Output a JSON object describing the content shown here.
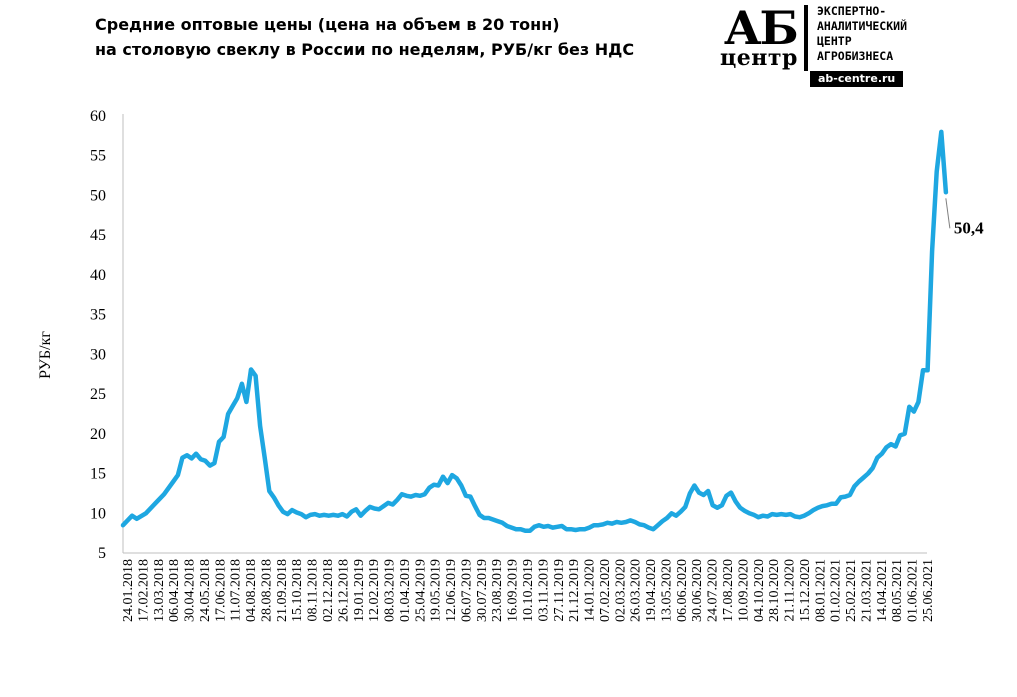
{
  "chart_data": {
    "type": "line",
    "title_line1": "Средние оптовые цены (цена на объем в 20 тонн)",
    "title_line2": "на столовую свеклу в России по неделям, РУБ/кг без НДС",
    "ylabel": "РУБ/кг",
    "ylim": [
      5,
      60
    ],
    "yticks": [
      "5",
      "10",
      "15",
      "20",
      "25",
      "30",
      "35",
      "40",
      "45",
      "50",
      "55",
      "60"
    ],
    "grid": false,
    "line_color": "#1ea7e1",
    "x_ticks": [
      "24.01.2018",
      "17.02.2018",
      "13.03.2018",
      "06.04.2018",
      "30.04.2018",
      "24.05.2018",
      "17.06.2018",
      "11.07.2018",
      "04.08.2018",
      "28.08.2018",
      "21.09.2018",
      "15.10.2018",
      "08.11.2018",
      "02.12.2018",
      "26.12.2018",
      "19.01.2019",
      "12.02.2019",
      "08.03.2019",
      "01.04.2019",
      "25.04.2019",
      "19.05.2019",
      "12.06.2019",
      "06.07.2019",
      "30.07.2019",
      "23.08.2019",
      "16.09.2019",
      "10.10.2019",
      "03.11.2019",
      "27.11.2019",
      "21.12.2019",
      "14.01.2020",
      "07.02.2020",
      "02.03.2020",
      "26.03.2020",
      "19.04.2020",
      "13.05.2020",
      "06.06.2020",
      "30.06.2020",
      "24.07.2020",
      "17.08.2020",
      "10.09.2020",
      "04.10.2020",
      "28.10.2020",
      "21.11.2020",
      "15.12.2020",
      "08.01.2021",
      "01.02.2021",
      "25.02.2021",
      "21.03.2021",
      "14.04.2021",
      "08.05.2021",
      "01.06.2021",
      "25.06.2021"
    ],
    "weeks": 178,
    "points": [
      [
        0,
        8.5
      ],
      [
        2,
        9.7
      ],
      [
        3,
        9.3
      ],
      [
        5,
        10.0
      ],
      [
        7,
        11.2
      ],
      [
        9,
        12.4
      ],
      [
        11,
        14.0
      ],
      [
        12,
        14.8
      ],
      [
        13,
        17.0
      ],
      [
        14,
        17.3
      ],
      [
        15,
        16.9
      ],
      [
        16,
        17.5
      ],
      [
        17,
        16.8
      ],
      [
        18,
        16.6
      ],
      [
        19,
        16.0
      ],
      [
        20,
        16.3
      ],
      [
        21,
        19.0
      ],
      [
        22,
        19.6
      ],
      [
        23,
        22.5
      ],
      [
        24,
        23.5
      ],
      [
        25,
        24.5
      ],
      [
        26,
        26.3
      ],
      [
        27,
        24.0
      ],
      [
        28,
        28.1
      ],
      [
        29,
        27.3
      ],
      [
        30,
        21.0
      ],
      [
        31,
        17.0
      ],
      [
        32,
        12.8
      ],
      [
        33,
        12.0
      ],
      [
        34,
        11.0
      ],
      [
        35,
        10.2
      ],
      [
        36,
        9.9
      ],
      [
        37,
        10.4
      ],
      [
        38,
        10.1
      ],
      [
        39,
        9.9
      ],
      [
        40,
        9.5
      ],
      [
        41,
        9.8
      ],
      [
        42,
        9.9
      ],
      [
        43,
        9.7
      ],
      [
        44,
        9.8
      ],
      [
        45,
        9.7
      ],
      [
        46,
        9.8
      ],
      [
        47,
        9.7
      ],
      [
        48,
        9.9
      ],
      [
        49,
        9.6
      ],
      [
        50,
        10.2
      ],
      [
        51,
        10.5
      ],
      [
        52,
        9.7
      ],
      [
        53,
        10.3
      ],
      [
        54,
        10.8
      ],
      [
        55,
        10.6
      ],
      [
        56,
        10.5
      ],
      [
        57,
        10.9
      ],
      [
        58,
        11.3
      ],
      [
        59,
        11.1
      ],
      [
        60,
        11.7
      ],
      [
        61,
        12.4
      ],
      [
        62,
        12.2
      ],
      [
        63,
        12.1
      ],
      [
        64,
        12.3
      ],
      [
        65,
        12.2
      ],
      [
        66,
        12.4
      ],
      [
        67,
        13.2
      ],
      [
        68,
        13.6
      ],
      [
        69,
        13.5
      ],
      [
        70,
        14.6
      ],
      [
        71,
        13.8
      ],
      [
        72,
        14.8
      ],
      [
        73,
        14.4
      ],
      [
        74,
        13.5
      ],
      [
        75,
        12.2
      ],
      [
        76,
        12.1
      ],
      [
        77,
        10.9
      ],
      [
        78,
        9.8
      ],
      [
        79,
        9.4
      ],
      [
        80,
        9.4
      ],
      [
        81,
        9.2
      ],
      [
        82,
        9.0
      ],
      [
        83,
        8.8
      ],
      [
        84,
        8.4
      ],
      [
        85,
        8.2
      ],
      [
        86,
        8.0
      ],
      [
        87,
        8.0
      ],
      [
        88,
        7.8
      ],
      [
        89,
        7.8
      ],
      [
        90,
        8.3
      ],
      [
        91,
        8.5
      ],
      [
        92,
        8.3
      ],
      [
        93,
        8.4
      ],
      [
        94,
        8.2
      ],
      [
        95,
        8.3
      ],
      [
        96,
        8.4
      ],
      [
        97,
        8.0
      ],
      [
        98,
        8.0
      ],
      [
        99,
        7.9
      ],
      [
        100,
        8.0
      ],
      [
        101,
        8.0
      ],
      [
        102,
        8.2
      ],
      [
        103,
        8.5
      ],
      [
        104,
        8.5
      ],
      [
        105,
        8.6
      ],
      [
        106,
        8.8
      ],
      [
        107,
        8.7
      ],
      [
        108,
        8.9
      ],
      [
        109,
        8.8
      ],
      [
        110,
        8.9
      ],
      [
        111,
        9.1
      ],
      [
        112,
        8.9
      ],
      [
        113,
        8.6
      ],
      [
        114,
        8.5
      ],
      [
        115,
        8.2
      ],
      [
        116,
        8.0
      ],
      [
        117,
        8.5
      ],
      [
        118,
        9.0
      ],
      [
        119,
        9.4
      ],
      [
        120,
        10.0
      ],
      [
        121,
        9.7
      ],
      [
        122,
        10.2
      ],
      [
        123,
        10.8
      ],
      [
        124,
        12.5
      ],
      [
        125,
        13.5
      ],
      [
        126,
        12.6
      ],
      [
        127,
        12.3
      ],
      [
        128,
        12.8
      ],
      [
        129,
        11.0
      ],
      [
        130,
        10.7
      ],
      [
        131,
        11.0
      ],
      [
        132,
        12.2
      ],
      [
        133,
        12.6
      ],
      [
        134,
        11.5
      ],
      [
        135,
        10.7
      ],
      [
        136,
        10.3
      ],
      [
        137,
        10.0
      ],
      [
        138,
        9.8
      ],
      [
        139,
        9.5
      ],
      [
        140,
        9.7
      ],
      [
        141,
        9.6
      ],
      [
        142,
        9.9
      ],
      [
        143,
        9.8
      ],
      [
        144,
        9.9
      ],
      [
        145,
        9.8
      ],
      [
        146,
        9.9
      ],
      [
        147,
        9.6
      ],
      [
        148,
        9.5
      ],
      [
        149,
        9.7
      ],
      [
        150,
        10.0
      ],
      [
        151,
        10.4
      ],
      [
        152,
        10.7
      ],
      [
        153,
        10.9
      ],
      [
        154,
        11.0
      ],
      [
        155,
        11.2
      ],
      [
        156,
        11.2
      ],
      [
        157,
        12.0
      ],
      [
        158,
        12.1
      ],
      [
        159,
        12.3
      ],
      [
        160,
        13.4
      ],
      [
        161,
        14.0
      ],
      [
        162,
        14.5
      ],
      [
        163,
        15.0
      ],
      [
        164,
        15.7
      ],
      [
        165,
        17.0
      ],
      [
        166,
        17.5
      ],
      [
        167,
        18.3
      ],
      [
        168,
        18.7
      ],
      [
        169,
        18.4
      ],
      [
        170,
        19.8
      ],
      [
        171,
        20.0
      ],
      [
        172,
        23.4
      ],
      [
        173,
        22.8
      ],
      [
        174,
        24.0
      ],
      [
        175,
        28.0
      ],
      [
        176,
        28.0
      ],
      [
        177,
        43.0
      ],
      [
        178,
        53.0
      ],
      [
        179,
        58.0
      ],
      [
        180,
        50.4
      ]
    ],
    "last_value_label": "50,4"
  },
  "logo": {
    "mark_top": "АБ",
    "mark_bottom": "центр",
    "text_lines": [
      "ЭКСПЕРТНО-",
      "АНАЛИТИЧЕСКИЙ",
      "ЦЕНТР",
      "АГРОБИЗНЕСА"
    ],
    "url": "ab-centre.ru"
  }
}
